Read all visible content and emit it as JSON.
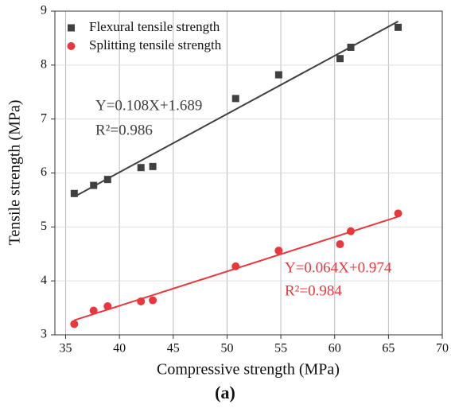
{
  "chart_data": {
    "type": "scatter",
    "x_label": "Compressive strength (MPa)",
    "y_label": "Tensile strength (MPa)",
    "caption": "(a)",
    "xlim": [
      34,
      70
    ],
    "xticks": [
      35,
      40,
      45,
      50,
      55,
      60,
      65,
      70
    ],
    "ylim": [
      3,
      9
    ],
    "yticks": [
      3,
      4,
      5,
      6,
      7,
      8,
      9
    ],
    "grid": true,
    "legend": "upper left",
    "series": [
      {
        "name": "Flexural tensile strength",
        "color": "#404040",
        "marker": "square",
        "x": [
          35.8,
          37.6,
          38.9,
          42.0,
          43.1,
          50.8,
          54.8,
          60.5,
          61.5,
          65.9
        ],
        "values": [
          5.62,
          5.77,
          5.88,
          6.1,
          6.12,
          7.38,
          7.82,
          8.12,
          8.33,
          8.7
        ],
        "fit_line": {
          "x": [
            35.8,
            65.9
          ],
          "y": [
            5.56,
            8.81
          ]
        },
        "equation": "Y=0.108X+1.689",
        "r2": "R²=0.986"
      },
      {
        "name": "Splitting tensile strength",
        "color": "#e8383d",
        "marker": "circle",
        "x": [
          35.8,
          37.6,
          38.9,
          42.0,
          43.1,
          50.8,
          54.8,
          60.5,
          61.5,
          65.9
        ],
        "values": [
          3.2,
          3.45,
          3.53,
          3.62,
          3.64,
          4.27,
          4.56,
          4.68,
          4.92,
          5.25
        ],
        "fit_line": {
          "x": [
            35.8,
            65.9
          ],
          "y": [
            3.27,
            5.19
          ]
        },
        "equation": "Y=0.064X+0.974",
        "r2": "R²=0.984"
      }
    ]
  }
}
